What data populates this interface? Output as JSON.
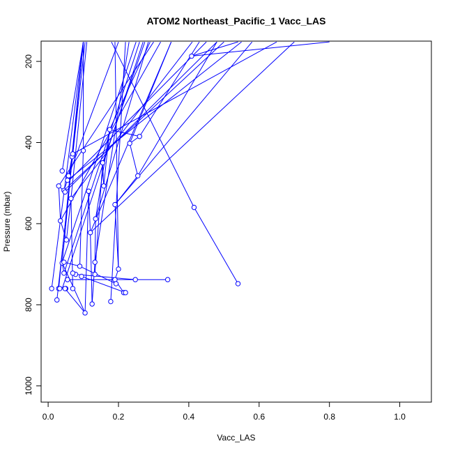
{
  "chart_data": {
    "type": "scatter",
    "title": "ATOM2 Northeast_Pacific_1 Vacc_LAS",
    "xlabel": "Vacc_LAS",
    "ylabel": "Pressure (mbar)",
    "xlim": [
      -0.02,
      1.09
    ],
    "ylim": [
      1040,
      150
    ],
    "y_reversed": true,
    "grid": false,
    "legend": "none",
    "colors": {
      "series": "#0000ff",
      "axes": "#000000"
    },
    "x_ticks": [
      {
        "v": 0,
        "label": "0.0"
      },
      {
        "v": 0.2,
        "label": "0.2"
      },
      {
        "v": 0.4,
        "label": "0.4"
      },
      {
        "v": 0.6,
        "label": "0.6"
      },
      {
        "v": 0.8,
        "label": "0.8"
      },
      {
        "v": 1.0,
        "label": "1.0"
      }
    ],
    "y_ticks": [
      {
        "v": 200,
        "label": "200"
      },
      {
        "v": 400,
        "label": "400"
      },
      {
        "v": 600,
        "label": "600"
      },
      {
        "v": 800,
        "label": "800"
      },
      {
        "v": 1000,
        "label": "1000"
      }
    ],
    "series": [
      {
        "points": [
          {
            "x": 0.01,
            "y": 760
          },
          {
            "x": 0.03,
            "y": 760
          },
          {
            "x": 0.025,
            "y": 788
          },
          {
            "x": 0.033,
            "y": 760
          },
          {
            "x": 0.05,
            "y": 760
          },
          {
            "x": 0.07,
            "y": 760
          },
          {
            "x": 0.048,
            "y": 760
          },
          {
            "x": 0.055,
            "y": 738
          },
          {
            "x": 0.078,
            "y": 725
          },
          {
            "x": 0.095,
            "y": 730
          },
          {
            "x": 0.09,
            "y": 705
          },
          {
            "x": 0.07,
            "y": 722
          },
          {
            "x": 0.045,
            "y": 722
          },
          {
            "x": 0.04,
            "y": 697
          },
          {
            "x": 0.045,
            "y": 695
          },
          {
            "x": 0.052,
            "y": 640
          },
          {
            "x": 0.035,
            "y": 593
          },
          {
            "x": 0.03,
            "y": 507
          },
          {
            "x": 0.045,
            "y": 518
          },
          {
            "x": 0.048,
            "y": 522
          },
          {
            "x": 0.055,
            "y": 493
          },
          {
            "x": 0.058,
            "y": 482
          },
          {
            "x": 0.065,
            "y": 538
          },
          {
            "x": 0.04,
            "y": 470
          },
          {
            "x": 0.068,
            "y": 435
          },
          {
            "x": 0.07,
            "y": 428
          },
          {
            "x": 0.1,
            "y": 420
          },
          {
            "x": 0.105,
            "y": 820
          },
          {
            "x": 0.115,
            "y": 520
          },
          {
            "x": 0.12,
            "y": 622
          },
          {
            "x": 0.125,
            "y": 798
          },
          {
            "x": 0.133,
            "y": 725
          },
          {
            "x": 0.133,
            "y": 695
          },
          {
            "x": 0.135,
            "y": 588
          },
          {
            "x": 0.155,
            "y": 450
          },
          {
            "x": 0.158,
            "y": 507
          },
          {
            "x": 0.175,
            "y": 368
          },
          {
            "x": 0.178,
            "y": 792
          },
          {
            "x": 0.19,
            "y": 738
          },
          {
            "x": 0.19,
            "y": 553
          },
          {
            "x": 0.193,
            "y": 748
          },
          {
            "x": 0.2,
            "y": 712
          },
          {
            "x": 0.215,
            "y": 770
          },
          {
            "x": 0.22,
            "y": 770
          },
          {
            "x": 0.232,
            "y": 402
          },
          {
            "x": 0.248,
            "y": 738
          },
          {
            "x": 0.255,
            "y": 482
          },
          {
            "x": 0.26,
            "y": 385
          },
          {
            "x": 0.34,
            "y": 738
          },
          {
            "x": 0.408,
            "y": 187
          },
          {
            "x": 0.415,
            "y": 560
          },
          {
            "x": 0.54,
            "y": 748
          }
        ],
        "segments": [
          [
            0.01,
            760,
            0.1,
            152
          ],
          [
            0.03,
            760,
            0.1,
            152
          ],
          [
            0.025,
            788,
            0.105,
            152
          ],
          [
            0.04,
            697,
            0.1,
            152
          ],
          [
            0.065,
            538,
            0.11,
            152
          ],
          [
            0.07,
            428,
            0.1,
            152
          ],
          [
            0.1,
            420,
            0.1,
            152
          ],
          [
            0.04,
            470,
            0.1,
            152
          ],
          [
            0.105,
            820,
            0.048,
            760
          ],
          [
            0.105,
            820,
            0.04,
            697
          ],
          [
            0.135,
            588,
            0.285,
            152
          ],
          [
            0.155,
            450,
            0.275,
            152
          ],
          [
            0.175,
            368,
            0.29,
            152
          ],
          [
            0.12,
            622,
            0.35,
            152
          ],
          [
            0.232,
            402,
            0.35,
            152
          ],
          [
            0.26,
            385,
            0.43,
            152
          ],
          [
            0.255,
            482,
            0.48,
            152
          ],
          [
            0.19,
            553,
            0.58,
            152
          ],
          [
            0.065,
            538,
            0.41,
            152
          ],
          [
            0.06,
            493,
            0.45,
            152
          ],
          [
            0.048,
            522,
            0.48,
            152
          ],
          [
            0.045,
            518,
            0.5,
            152
          ],
          [
            0.055,
            493,
            0.55,
            152
          ],
          [
            0.07,
            428,
            0.65,
            152
          ],
          [
            0.12,
            622,
            0.7,
            152
          ],
          [
            0.03,
            507,
            0.3,
            152
          ],
          [
            0.035,
            593,
            0.32,
            152
          ],
          [
            0.04,
            695,
            0.25,
            152
          ],
          [
            0.058,
            482,
            0.2,
            152
          ],
          [
            0.045,
            722,
            0.26,
            152
          ],
          [
            0.04,
            760,
            0.27,
            152
          ],
          [
            0.133,
            695,
            0.23,
            152
          ],
          [
            0.178,
            792,
            0.22,
            152
          ],
          [
            0.2,
            712,
            0.19,
            152
          ],
          [
            0.158,
            507,
            0.175,
            368
          ],
          [
            0.133,
            725,
            0.155,
            450
          ],
          [
            0.408,
            187,
            0.54,
            152
          ],
          [
            0.415,
            560,
            0.18,
            152
          ],
          [
            0.54,
            748,
            0.415,
            560
          ],
          [
            0.34,
            738,
            0.055,
            738
          ],
          [
            0.248,
            738,
            0.078,
            725
          ],
          [
            0.22,
            770,
            0.095,
            730
          ],
          [
            0.215,
            770,
            0.19,
            738
          ],
          [
            0.193,
            748,
            0.09,
            705
          ],
          [
            0.19,
            738,
            0.2,
            712
          ],
          [
            0.2,
            712,
            0.19,
            553
          ],
          [
            0.19,
            553,
            0.255,
            482
          ],
          [
            0.255,
            482,
            0.232,
            402
          ],
          [
            0.232,
            402,
            0.26,
            385
          ],
          [
            0.26,
            385,
            0.175,
            368
          ],
          [
            0.175,
            368,
            0.135,
            588
          ],
          [
            0.135,
            588,
            0.133,
            695
          ],
          [
            0.133,
            695,
            0.125,
            798
          ],
          [
            0.125,
            798,
            0.12,
            622
          ],
          [
            0.12,
            622,
            0.115,
            520
          ],
          [
            0.115,
            520,
            0.105,
            820
          ],
          [
            0.07,
            760,
            0.065,
            538
          ],
          [
            0.065,
            538,
            0.052,
            640
          ],
          [
            0.052,
            640,
            0.035,
            593
          ],
          [
            0.035,
            593,
            0.03,
            507
          ],
          [
            0.03,
            507,
            0.048,
            522
          ],
          [
            0.048,
            522,
            0.045,
            518
          ],
          [
            0.045,
            518,
            0.055,
            493
          ],
          [
            0.055,
            493,
            0.058,
            482
          ],
          [
            0.058,
            482,
            0.068,
            435
          ],
          [
            0.068,
            435,
            0.07,
            428
          ],
          [
            0.045,
            722,
            0.04,
            697
          ],
          [
            0.078,
            725,
            0.07,
            722
          ],
          [
            0.09,
            705,
            0.045,
            695
          ],
          [
            0.155,
            450,
            0.158,
            507
          ],
          [
            0.1,
            420,
            0.09,
            705
          ],
          [
            0.408,
            187,
            0.8,
            152
          ]
        ]
      }
    ]
  }
}
